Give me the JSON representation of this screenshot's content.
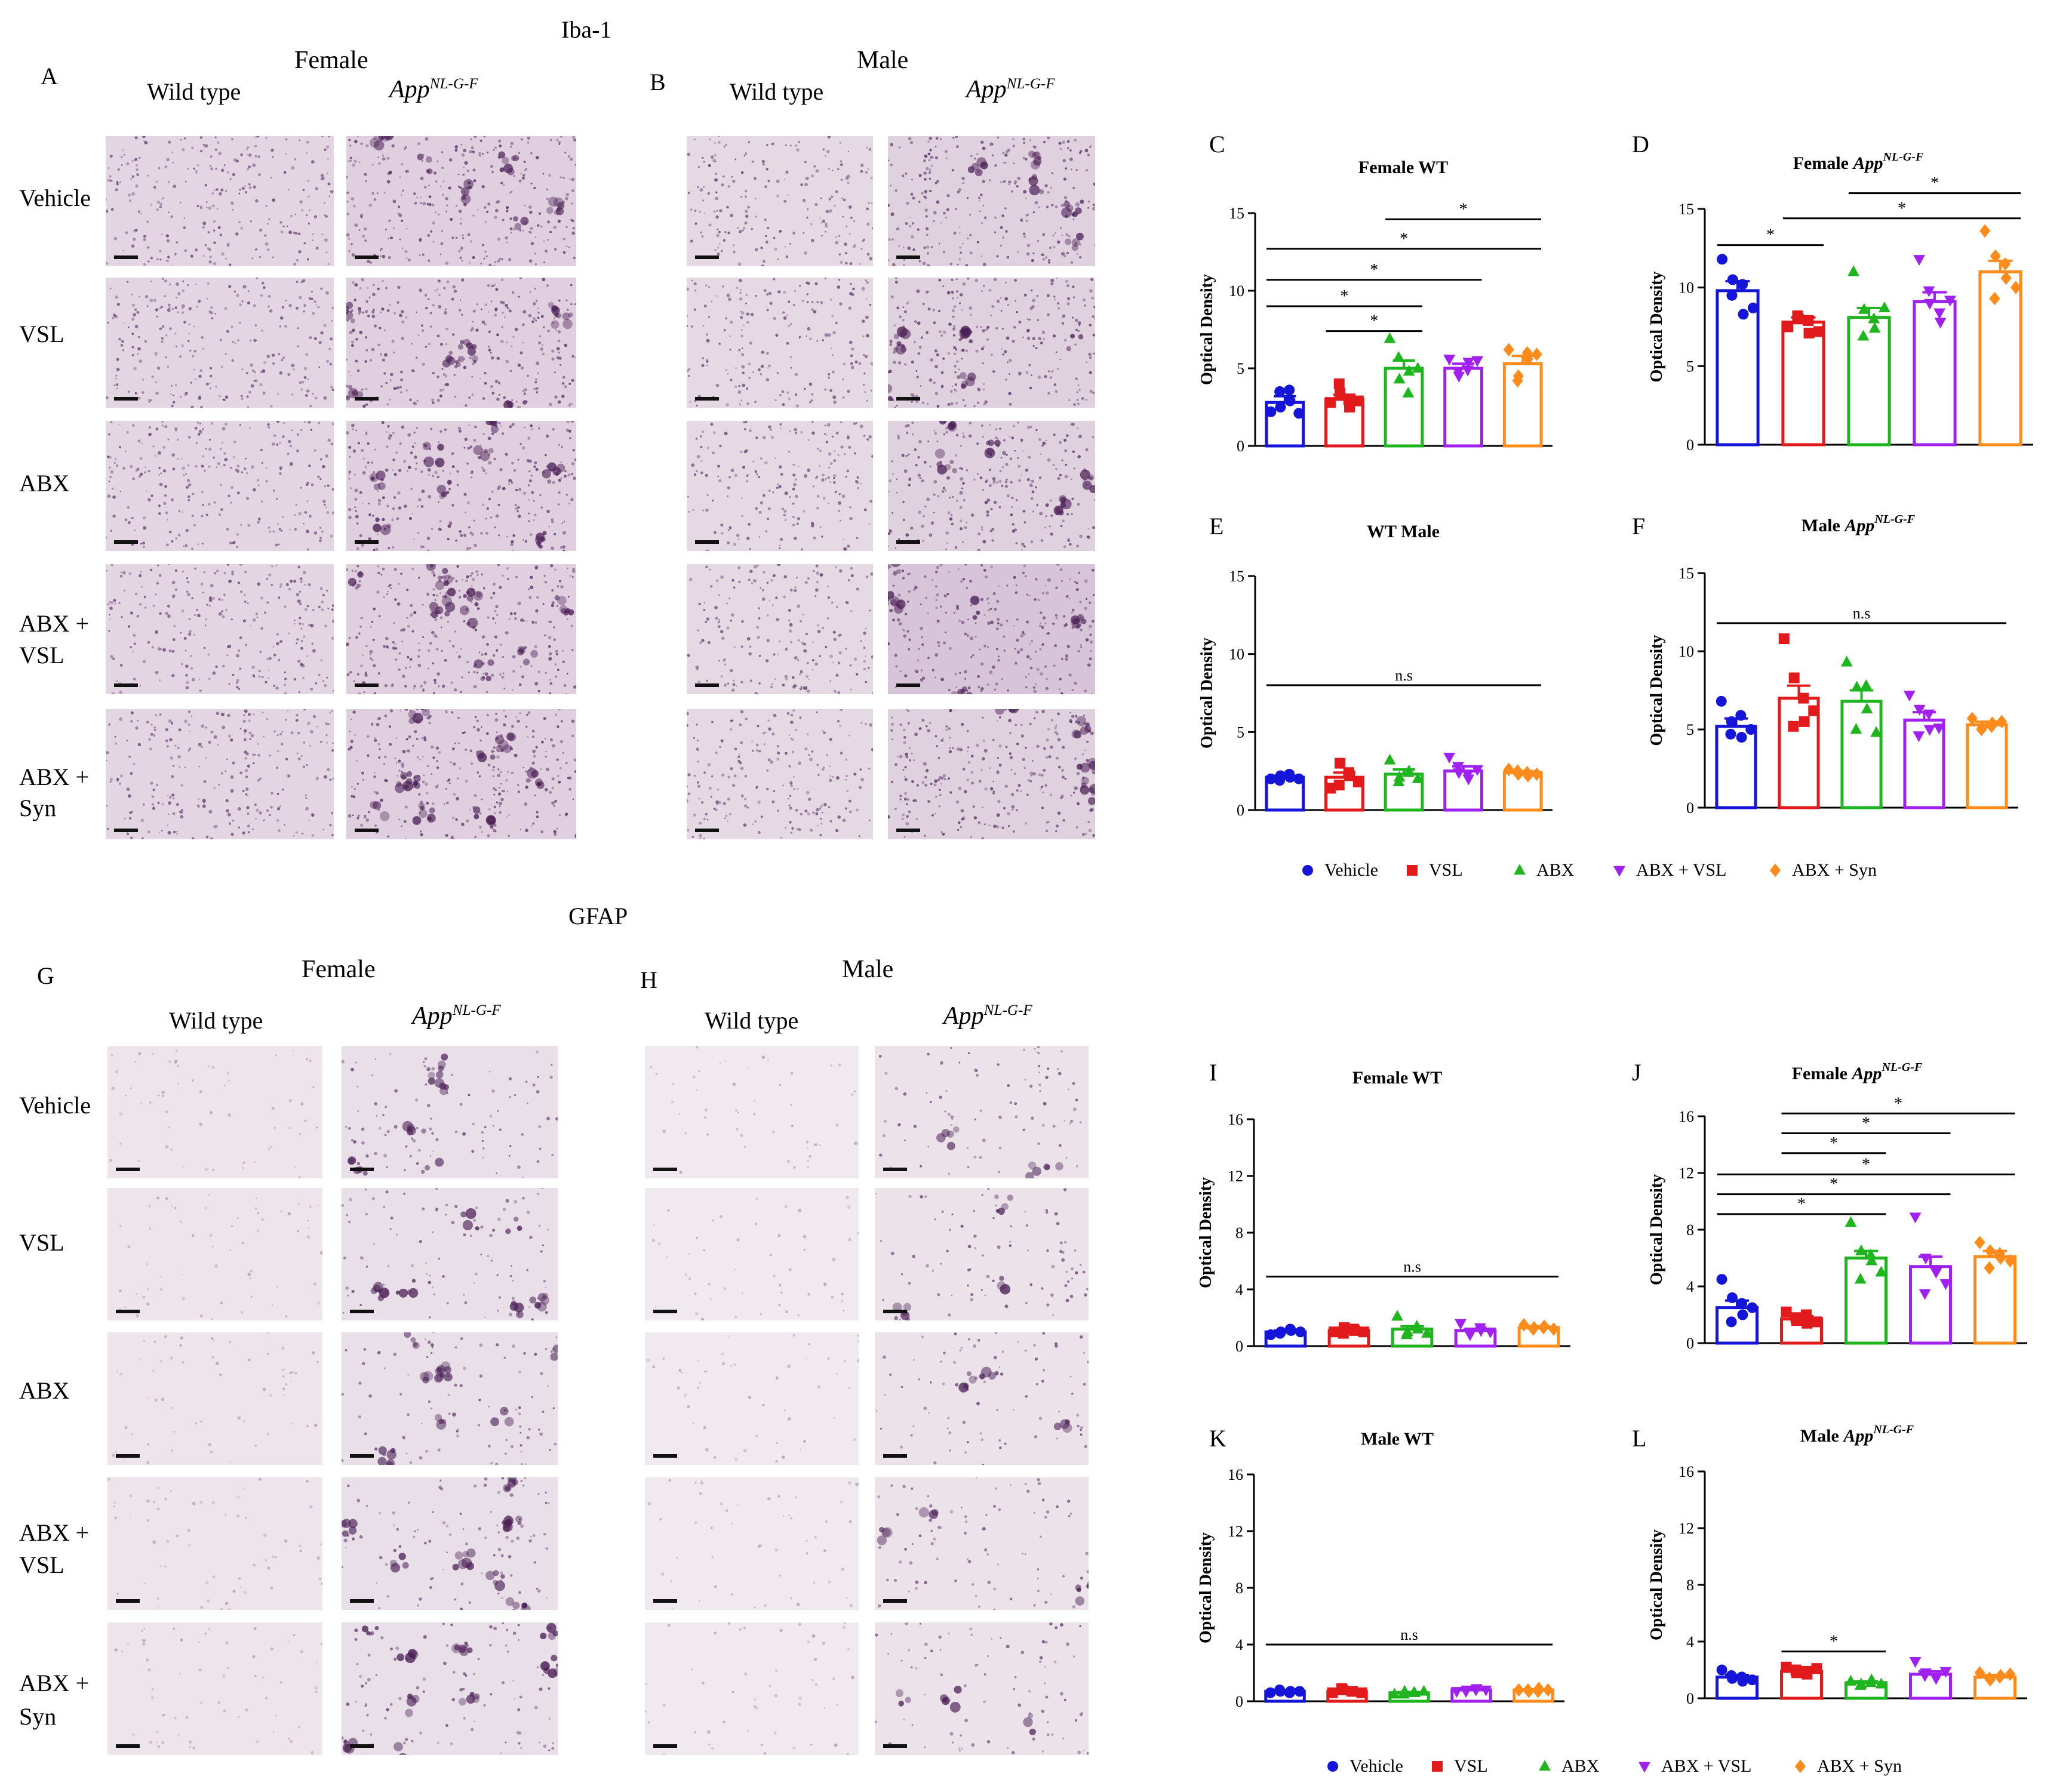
{
  "sections": [
    {
      "title": "Iba-1",
      "groups": [
        {
          "letter": "A",
          "sex": "Female"
        },
        {
          "letter": "B",
          "sex": "Male"
        }
      ]
    },
    {
      "title": "GFAP",
      "groups": [
        {
          "letter": "G",
          "sex": "Female"
        },
        {
          "letter": "H",
          "sex": "Male"
        }
      ]
    }
  ],
  "genotypes": [
    "Wild type",
    "App",
    "NL-G-F"
  ],
  "rows": [
    [
      "Vehicle"
    ],
    [
      "VSL"
    ],
    [
      "ABX"
    ],
    [
      "ABX +",
      "VSL"
    ],
    [
      "ABX +",
      "Syn"
    ]
  ],
  "legend": [
    {
      "label": "Vehicle",
      "marker": "circle",
      "color": "#1515d9"
    },
    {
      "label": "VSL",
      "marker": "square",
      "color": "#e31a1c"
    },
    {
      "label": "ABX",
      "marker": "triangle",
      "color": "#1fb51f"
    },
    {
      "label": "ABX + VSL",
      "marker": "triangle-down",
      "color": "#a020f0"
    },
    {
      "label": "ABX + Syn",
      "marker": "diamond",
      "color": "#ff8c1a"
    }
  ],
  "chart_data": [
    {
      "letter": "C",
      "type": "bar",
      "title": "Female WT",
      "title_sup": "",
      "ylabel": "Optical Density",
      "ylim": [
        0,
        15
      ],
      "yticks": [
        0,
        5,
        10,
        15
      ],
      "categories": [
        "Vehicle",
        "VSL",
        "ABX",
        "ABX + VSL",
        "ABX + Syn"
      ],
      "values": [
        2.8,
        3.0,
        5.0,
        5.0,
        5.3
      ],
      "errors": [
        0.4,
        0.3,
        0.5,
        0.3,
        0.5
      ],
      "points": [
        [
          2.2,
          2.5,
          2.9,
          3.5,
          3.6,
          2.1
        ],
        [
          2.8,
          3.4,
          2.5,
          4.0,
          3.0,
          2.9
        ],
        [
          6.9,
          4.3,
          4.8,
          5.7,
          3.4,
          5.0
        ],
        [
          5.6,
          4.5,
          5.4,
          4.8,
          4.9,
          5.5
        ],
        [
          6.2,
          4.5,
          5.6,
          4.2,
          6.0,
          5.9
        ]
      ],
      "sig": [
        {
          "from": 2,
          "to": 4,
          "y": 14.6,
          "label": "*"
        },
        {
          "from": 0,
          "to": 4,
          "y": 12.7,
          "label": "*"
        },
        {
          "from": 0,
          "to": 3,
          "y": 10.7,
          "label": "*"
        },
        {
          "from": 0,
          "to": 2,
          "y": 9.0,
          "label": "*"
        },
        {
          "from": 1,
          "to": 2,
          "y": 7.4,
          "label": "*"
        }
      ]
    },
    {
      "letter": "D",
      "type": "bar",
      "title": "Female ",
      "title_sup": "NL-G-F",
      "title_italic": "App",
      "ylabel": "Optical Density",
      "ylim": [
        0,
        15
      ],
      "yticks": [
        0,
        5,
        10,
        15
      ],
      "categories": [
        "Vehicle",
        "VSL",
        "ABX",
        "ABX + VSL",
        "ABX + Syn"
      ],
      "values": [
        9.8,
        7.8,
        8.1,
        9.1,
        11.0
      ],
      "errors": [
        0.6,
        0.3,
        0.6,
        0.6,
        0.7
      ],
      "points": [
        [
          11.8,
          10.5,
          8.3,
          9.5,
          10.2,
          8.7
        ],
        [
          7.5,
          8.0,
          7.1,
          8.2,
          7.9,
          7.2
        ],
        [
          11.0,
          8.6,
          7.4,
          6.9,
          8.0,
          8.7
        ],
        [
          11.8,
          9.0,
          7.8,
          9.8,
          8.4,
          9.2
        ],
        [
          13.6,
          12.0,
          10.6,
          9.3,
          11.5,
          10.0
        ]
      ],
      "sig": [
        {
          "from": 2,
          "to": 4,
          "y": 16.0,
          "label": "*"
        },
        {
          "from": 1,
          "to": 4,
          "y": 14.4,
          "label": "*"
        },
        {
          "from": 0,
          "to": 1,
          "y": 12.7,
          "label": "*"
        }
      ]
    },
    {
      "letter": "E",
      "type": "bar",
      "title": "WT Male",
      "title_sup": "",
      "ylabel": "Optical Density",
      "ylim": [
        0,
        15
      ],
      "yticks": [
        0,
        5,
        10,
        15
      ],
      "categories": [
        "Vehicle",
        "VSL",
        "ABX",
        "ABX + VSL",
        "ABX + Syn"
      ],
      "values": [
        2.1,
        2.1,
        2.3,
        2.5,
        2.4
      ],
      "errors": [
        0.1,
        0.3,
        0.3,
        0.3,
        0.1
      ],
      "points": [
        [
          2.0,
          2.2,
          2.1,
          1.9,
          2.3,
          2.0
        ],
        [
          1.4,
          3.0,
          2.2,
          1.6,
          2.4,
          1.8
        ],
        [
          3.2,
          2.1,
          2.5,
          1.8,
          2.4,
          2.0
        ],
        [
          3.4,
          2.4,
          2.0,
          2.8,
          2.3,
          2.6
        ],
        [
          2.6,
          2.3,
          2.2,
          2.5,
          2.4,
          2.3
        ]
      ],
      "sig": [
        {
          "from": 0,
          "to": 4,
          "y": 8.0,
          "label": "n.s"
        }
      ]
    },
    {
      "letter": "F",
      "type": "bar",
      "title": "Male ",
      "title_sup": "NL-G-F",
      "title_italic": "App",
      "ylabel": "Optical Density",
      "ylim": [
        0,
        15
      ],
      "yticks": [
        0,
        5,
        10,
        15
      ],
      "categories": [
        "Vehicle",
        "VSL",
        "ABX",
        "ABX + VSL",
        "ABX + Syn"
      ],
      "values": [
        5.2,
        7.0,
        6.8,
        5.6,
        5.3
      ],
      "errors": [
        0.5,
        0.8,
        0.7,
        0.5,
        0.2
      ],
      "points": [
        [
          6.8,
          5.5,
          4.5,
          4.7,
          5.9,
          5.0
        ],
        [
          10.8,
          8.3,
          5.5,
          5.2,
          7.0,
          6.2
        ],
        [
          9.3,
          7.7,
          6.3,
          5.0,
          7.8,
          4.8
        ],
        [
          7.2,
          6.3,
          5.0,
          4.6,
          6.0,
          5.1
        ],
        [
          5.7,
          5.1,
          5.4,
          5.0,
          5.2,
          5.5
        ]
      ],
      "sig": [
        {
          "from": 0,
          "to": 4,
          "y": 11.8,
          "label": "n.s"
        }
      ]
    },
    {
      "letter": "I",
      "type": "bar",
      "title": "Female WT",
      "title_sup": "",
      "ylabel": "Optical Density",
      "ylim": [
        0,
        16
      ],
      "yticks": [
        0,
        4,
        8,
        12,
        16
      ],
      "categories": [
        "Vehicle",
        "VSL",
        "ABX",
        "ABX + VSL",
        "ABX + Syn"
      ],
      "values": [
        1.0,
        1.1,
        1.2,
        1.1,
        1.3
      ],
      "errors": [
        0.1,
        0.1,
        0.2,
        0.1,
        0.1
      ],
      "points": [
        [
          0.8,
          1.0,
          1.1,
          0.9,
          1.2,
          1.0
        ],
        [
          1.0,
          1.3,
          1.1,
          0.9,
          1.2,
          1.0
        ],
        [
          2.1,
          1.0,
          1.2,
          0.8,
          1.4,
          0.9
        ],
        [
          1.6,
          1.0,
          1.1,
          0.8,
          1.3,
          1.0
        ],
        [
          1.5,
          1.3,
          1.4,
          1.2,
          1.3,
          1.2
        ]
      ],
      "sig": [
        {
          "from": 0,
          "to": 4,
          "y": 4.9,
          "label": "n.s"
        }
      ]
    },
    {
      "letter": "J",
      "type": "bar",
      "title": "Female ",
      "title_sup": "NL-G-F",
      "title_italic": "App",
      "ylabel": "Optical Density",
      "ylim": [
        0,
        16
      ],
      "yticks": [
        0,
        4,
        8,
        12,
        16
      ],
      "categories": [
        "Vehicle",
        "VSL",
        "ABX",
        "ABX + VSL",
        "ABX + Syn"
      ],
      "values": [
        2.5,
        1.7,
        6.0,
        5.4,
        6.1
      ],
      "errors": [
        0.5,
        0.2,
        0.5,
        0.7,
        0.4
      ],
      "points": [
        [
          4.5,
          3.2,
          2.0,
          1.5,
          2.8,
          2.5
        ],
        [
          2.2,
          1.6,
          1.4,
          1.8,
          2.0,
          1.5
        ],
        [
          8.5,
          6.5,
          5.8,
          4.5,
          6.2,
          5.0
        ],
        [
          8.9,
          6.0,
          5.0,
          3.5,
          5.2,
          4.2
        ],
        [
          7.1,
          6.5,
          6.0,
          5.3,
          6.3,
          5.8
        ]
      ],
      "sig": [
        {
          "from": 1,
          "to": 4,
          "y": 16.2,
          "label": "*"
        },
        {
          "from": 1,
          "to": 3,
          "y": 14.8,
          "label": "*"
        },
        {
          "from": 1,
          "to": 2,
          "y": 13.4,
          "label": "*"
        },
        {
          "from": 0,
          "to": 4,
          "y": 11.9,
          "label": "*"
        },
        {
          "from": 0,
          "to": 3,
          "y": 10.5,
          "label": "*"
        },
        {
          "from": 0,
          "to": 2,
          "y": 9.1,
          "label": "*"
        }
      ]
    },
    {
      "letter": "K",
      "type": "bar",
      "title": "Male WT",
      "title_sup": "",
      "ylabel": "Optical Density",
      "ylim": [
        0,
        16
      ],
      "yticks": [
        0,
        4,
        8,
        12,
        16
      ],
      "categories": [
        "Vehicle",
        "VSL",
        "ABX",
        "ABX + VSL",
        "ABX + Syn"
      ],
      "values": [
        0.7,
        0.7,
        0.6,
        0.8,
        0.8
      ],
      "errors": [
        0.05,
        0.05,
        0.05,
        0.05,
        0.05
      ],
      "points": [
        [
          0.6,
          0.7,
          0.7,
          0.8,
          0.6,
          0.7
        ],
        [
          0.6,
          0.8,
          0.7,
          0.9,
          0.7,
          0.6
        ],
        [
          0.5,
          0.7,
          0.6,
          0.5,
          0.6,
          0.7
        ],
        [
          0.7,
          0.8,
          0.9,
          0.7,
          0.8,
          0.8
        ],
        [
          0.8,
          0.7,
          0.9,
          0.8,
          0.7,
          0.8
        ]
      ],
      "sig": [
        {
          "from": 0,
          "to": 4,
          "y": 4.0,
          "label": "n.s"
        }
      ]
    },
    {
      "letter": "L",
      "type": "bar",
      "title": "Male ",
      "title_sup": "NL-G-F",
      "title_italic": "App",
      "ylabel": "Optical Density",
      "ylim": [
        0,
        16
      ],
      "yticks": [
        0,
        4,
        8,
        12,
        16
      ],
      "categories": [
        "Vehicle",
        "VSL",
        "ABX",
        "ABX + VSL",
        "ABX + Syn"
      ],
      "values": [
        1.5,
        1.9,
        1.1,
        1.7,
        1.5
      ],
      "errors": [
        0.15,
        0.15,
        0.1,
        0.2,
        0.15
      ],
      "points": [
        [
          2.0,
          1.4,
          1.2,
          1.6,
          1.5,
          1.3
        ],
        [
          2.2,
          1.8,
          1.7,
          2.0,
          1.9,
          2.1
        ],
        [
          1.2,
          1.0,
          1.3,
          0.9,
          1.1,
          1.0
        ],
        [
          2.6,
          1.8,
          1.4,
          1.6,
          1.5,
          1.9
        ],
        [
          1.8,
          1.3,
          1.6,
          1.4,
          1.5,
          1.7
        ]
      ],
      "sig": [
        {
          "from": 1,
          "to": 2,
          "y": 3.3,
          "label": "*"
        }
      ]
    }
  ]
}
